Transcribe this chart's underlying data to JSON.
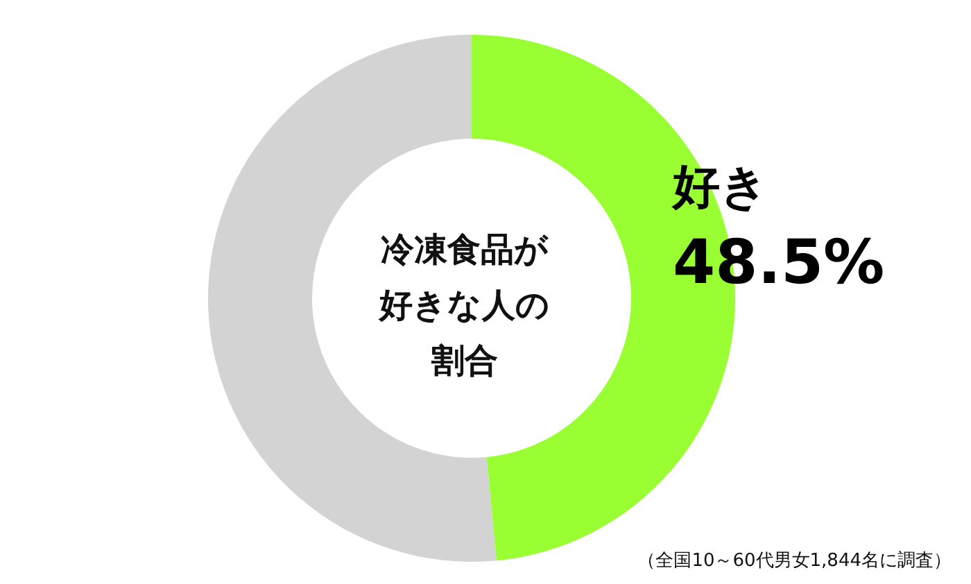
{
  "chart_data": {
    "type": "donut",
    "title": "冷凍食品が好きな人の割合",
    "categories": [
      "好き",
      null
    ],
    "values": [
      48.5,
      51.5
    ],
    "colors": [
      "#99ff33",
      "#d3d3d3"
    ],
    "value_labels": [
      "48.5%",
      null
    ],
    "annotations": [
      "（全国10～60代男女1,844名に調査）"
    ]
  }
}
